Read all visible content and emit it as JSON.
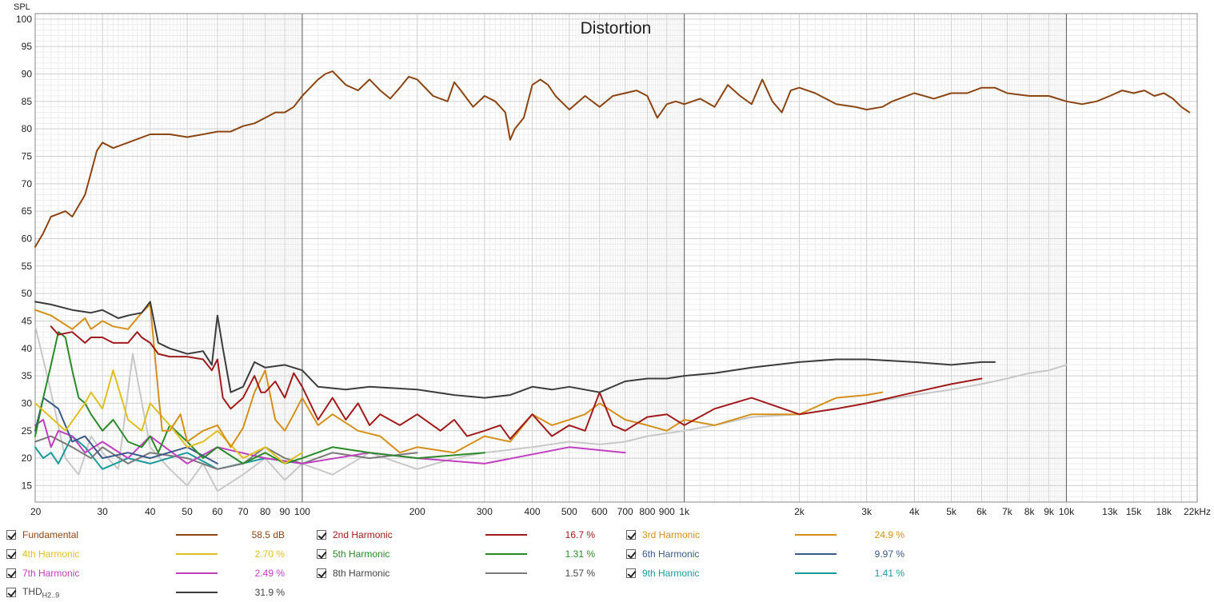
{
  "chart_data": {
    "type": "line",
    "title": "Distortion",
    "ylabel": "SPL",
    "xscale": "log",
    "xlim": [
      20,
      22000
    ],
    "ylim": [
      12,
      101
    ],
    "grid": true,
    "x_ticks": [
      {
        "v": 20,
        "label": "20"
      },
      {
        "v": 30,
        "label": "30"
      },
      {
        "v": 40,
        "label": "40"
      },
      {
        "v": 50,
        "label": "50"
      },
      {
        "v": 60,
        "label": "60"
      },
      {
        "v": 70,
        "label": "70"
      },
      {
        "v": 80,
        "label": "80"
      },
      {
        "v": 90,
        "label": "90"
      },
      {
        "v": 100,
        "label": "100"
      },
      {
        "v": 200,
        "label": "200"
      },
      {
        "v": 300,
        "label": "300"
      },
      {
        "v": 400,
        "label": "400"
      },
      {
        "v": 500,
        "label": "500"
      },
      {
        "v": 600,
        "label": "600"
      },
      {
        "v": 700,
        "label": "700"
      },
      {
        "v": 800,
        "label": "800"
      },
      {
        "v": 900,
        "label": "900"
      },
      {
        "v": 1000,
        "label": "1k"
      },
      {
        "v": 2000,
        "label": "2k"
      },
      {
        "v": 3000,
        "label": "3k"
      },
      {
        "v": 4000,
        "label": "4k"
      },
      {
        "v": 5000,
        "label": "5k"
      },
      {
        "v": 6000,
        "label": "6k"
      },
      {
        "v": 7000,
        "label": "7k"
      },
      {
        "v": 8000,
        "label": "8k"
      },
      {
        "v": 9000,
        "label": "9k"
      },
      {
        "v": 10000,
        "label": "10k"
      },
      {
        "v": 13000,
        "label": "13k"
      },
      {
        "v": 15000,
        "label": "15k"
      },
      {
        "v": 18000,
        "label": "18k"
      },
      {
        "v": 22000,
        "label": "22kHz"
      }
    ],
    "y_ticks": [
      15,
      20,
      25,
      30,
      35,
      40,
      45,
      50,
      55,
      60,
      65,
      70,
      75,
      80,
      85,
      90,
      95,
      100
    ],
    "series": [
      {
        "name": "THD H2..9",
        "color": "#3c3c3c",
        "x": [
          20,
          22,
          25,
          28,
          30,
          33,
          35,
          38,
          40,
          42,
          45,
          50,
          55,
          58,
          60,
          62,
          65,
          70,
          75,
          80,
          90,
          100,
          110,
          130,
          150,
          200,
          250,
          300,
          350,
          400,
          450,
          500,
          600,
          700,
          800,
          900,
          1000,
          1200,
          1500,
          2000,
          2500,
          3000,
          4000,
          5000,
          6000,
          6500
        ],
        "y": [
          48.5,
          48,
          47,
          46.5,
          47,
          45.5,
          46,
          46.5,
          48.5,
          41,
          40,
          39,
          39.5,
          37,
          46,
          40,
          32,
          33,
          37.5,
          36.5,
          37,
          36,
          33,
          32.5,
          33,
          32.5,
          31.5,
          31,
          31.5,
          33,
          32.5,
          33,
          32,
          34,
          34.5,
          34.5,
          35,
          35.5,
          36.5,
          37.5,
          38,
          38,
          37.5,
          37,
          37.5,
          37.5
        ]
      },
      {
        "name": "Fundamental",
        "color": "#8b4513",
        "x": [
          20,
          21,
          22,
          23,
          24,
          25,
          26,
          27,
          28,
          29,
          30,
          32,
          35,
          40,
          45,
          50,
          55,
          60,
          65,
          70,
          75,
          80,
          85,
          90,
          95,
          100,
          110,
          115,
          120,
          130,
          140,
          150,
          160,
          170,
          180,
          190,
          200,
          220,
          240,
          250,
          260,
          280,
          300,
          320,
          340,
          350,
          360,
          380,
          400,
          420,
          440,
          460,
          500,
          550,
          600,
          650,
          700,
          750,
          800,
          850,
          900,
          950,
          1000,
          1100,
          1200,
          1300,
          1400,
          1500,
          1600,
          1700,
          1800,
          1900,
          2000,
          2200,
          2500,
          2800,
          3000,
          3300,
          3500,
          4000,
          4500,
          5000,
          5500,
          6000,
          6500,
          7000,
          8000,
          9000,
          10000,
          11000,
          12000,
          13000,
          14000,
          15000,
          16000,
          17000,
          18000,
          19000,
          20000,
          21000
        ],
        "y": [
          58.5,
          61,
          64,
          64.5,
          65,
          64,
          66,
          68,
          72,
          76,
          77.5,
          76.5,
          77.5,
          79,
          79,
          78.5,
          79,
          79.5,
          79.5,
          80.5,
          81,
          82,
          83,
          83,
          84,
          86,
          89,
          90,
          90.5,
          88,
          87,
          89,
          87,
          85.5,
          87.5,
          89.5,
          89,
          86,
          85,
          88.5,
          87,
          84,
          86,
          85,
          83,
          78,
          80,
          82,
          88,
          89,
          88,
          86,
          83.5,
          86,
          84,
          86,
          86.5,
          87,
          86,
          82,
          84.5,
          85,
          84.5,
          85.5,
          84,
          88,
          86,
          84.5,
          89,
          85,
          83,
          87,
          87.5,
          86.5,
          84.5,
          84,
          83.5,
          84,
          85,
          86.5,
          85.5,
          86.5,
          86.5,
          87.5,
          87.5,
          86.5,
          86,
          86,
          85,
          84.5,
          85,
          86,
          87,
          86.5,
          87,
          86,
          86.5,
          85.5,
          84,
          83
        ]
      },
      {
        "name": "2nd Harmonic",
        "color": "#a01c1c",
        "x": [
          22,
          23,
          25,
          27,
          28,
          30,
          32,
          35,
          37,
          38,
          40,
          42,
          45,
          50,
          55,
          58,
          60,
          62,
          65,
          70,
          75,
          78,
          80,
          85,
          90,
          95,
          100,
          110,
          120,
          130,
          140,
          150,
          160,
          180,
          200,
          230,
          250,
          270,
          300,
          330,
          350,
          400,
          450,
          500,
          550,
          600,
          650,
          700,
          800,
          900,
          1000,
          1200,
          1500,
          2000,
          2500,
          3000,
          4000,
          5000,
          6000
        ],
        "y": [
          44,
          42.5,
          43,
          41,
          42,
          42,
          41,
          41,
          43,
          42,
          41,
          39,
          38.5,
          38.5,
          38,
          36,
          38,
          31,
          29,
          31,
          35,
          32,
          32,
          34,
          31,
          35.5,
          33,
          27,
          31,
          27,
          30,
          26,
          28,
          26,
          28,
          25,
          27,
          24,
          25,
          26,
          23.5,
          28,
          24,
          26,
          25,
          32,
          26,
          25,
          27.5,
          28,
          26,
          29,
          31,
          28,
          29,
          30,
          32,
          33.5,
          34.5
        ]
      },
      {
        "name": "3rd Harmonic",
        "color": "#d4901a",
        "x": [
          20,
          22,
          25,
          27,
          28,
          30,
          32,
          35,
          38,
          40,
          42,
          43,
          45,
          48,
          50,
          55,
          60,
          65,
          70,
          75,
          80,
          85,
          90,
          95,
          100,
          110,
          120,
          140,
          160,
          180,
          200,
          250,
          300,
          350,
          400,
          450,
          500,
          550,
          600,
          700,
          800,
          900,
          1000,
          1200,
          1500,
          2000,
          2500,
          3000,
          3300
        ],
        "y": [
          47,
          46,
          43.5,
          45.5,
          43.5,
          45,
          44,
          43.5,
          46.5,
          48,
          32,
          25,
          25,
          28,
          23,
          25,
          26,
          22,
          25.5,
          32,
          36,
          27,
          25,
          28,
          31,
          26,
          28,
          25,
          24,
          21,
          22,
          21,
          24,
          23,
          28,
          26,
          27,
          28,
          30,
          27,
          26,
          25,
          27,
          26,
          28,
          28,
          31,
          31.5,
          32
        ]
      },
      {
        "name": "4th Harmonic",
        "color": "#e0c020",
        "x": [
          20,
          24,
          27,
          28,
          30,
          32,
          35,
          38,
          40,
          45,
          50,
          55,
          60,
          70,
          80,
          90,
          100
        ],
        "y": [
          30,
          25,
          30,
          32,
          29,
          36,
          27,
          25,
          30,
          26,
          22,
          23,
          25,
          20,
          22,
          19,
          21
        ]
      },
      {
        "name": "5th Harmonic",
        "color": "#2a8a2a",
        "x": [
          20,
          21,
          22,
          23,
          24,
          25,
          26,
          27,
          28,
          30,
          32,
          35,
          38,
          40,
          42,
          45,
          50,
          55,
          60,
          70,
          80,
          90,
          100,
          120,
          150,
          200,
          300
        ],
        "y": [
          24,
          31,
          37,
          43,
          42,
          36,
          31,
          30,
          28,
          25,
          27,
          23,
          22,
          24,
          21,
          26,
          23,
          20,
          22,
          19,
          21,
          19,
          20,
          22,
          21,
          20,
          21
        ]
      },
      {
        "name": "6th Harmonic",
        "color": "#3a5a8a",
        "x": [
          20,
          21,
          22,
          23,
          25,
          27,
          30,
          35,
          40,
          50,
          60
        ],
        "y": [
          25,
          31,
          30,
          29,
          23,
          24,
          20,
          21,
          20,
          22,
          19
        ]
      },
      {
        "name": "7th Harmonic",
        "color": "#c040c0",
        "x": [
          20,
          21,
          22,
          23,
          25,
          27,
          30,
          35,
          40,
          50,
          60,
          80,
          100,
          150,
          200,
          300,
          500,
          700
        ],
        "y": [
          26,
          27,
          22,
          25,
          24,
          21,
          23,
          20,
          24,
          19,
          22,
          20,
          19,
          21,
          20,
          19,
          22,
          21
        ]
      },
      {
        "name": "8th Harmonic",
        "color": "#7a7a7a",
        "x": [
          20,
          22,
          25,
          28,
          30,
          35,
          40,
          50,
          60,
          70,
          80,
          90,
          100,
          120,
          150,
          200
        ],
        "y": [
          23,
          24,
          22,
          20,
          22,
          19,
          21,
          20,
          18,
          19,
          22,
          20,
          19,
          21,
          20,
          21
        ]
      },
      {
        "name": "9th Harmonic",
        "color": "#1a9a9a",
        "x": [
          20,
          21,
          22,
          23,
          25,
          27,
          30,
          35,
          40,
          50,
          60,
          80,
          100
        ],
        "y": [
          22,
          20,
          21,
          19,
          24,
          22,
          18,
          20,
          19,
          21,
          18,
          20,
          19
        ]
      },
      {
        "name": "noise floor",
        "color": "#c8c8c8",
        "x": [
          20,
          21,
          22,
          24,
          26,
          28,
          30,
          33,
          36,
          40,
          45,
          50,
          55,
          60,
          70,
          80,
          90,
          100,
          120,
          150,
          200,
          250,
          300,
          400,
          500,
          600,
          700,
          800,
          1000,
          1200,
          1500,
          2000,
          2500,
          3000,
          4000,
          5000,
          6000,
          7000,
          8000,
          9000,
          10000
        ],
        "y": [
          44,
          38,
          32,
          20,
          17,
          24,
          21,
          18,
          39,
          22,
          18,
          15,
          19,
          14,
          17,
          20,
          16,
          19,
          17,
          21,
          18,
          20,
          21,
          22,
          23,
          22.5,
          23,
          24,
          25,
          26,
          27.5,
          28,
          29,
          30,
          31.5,
          32.5,
          33.5,
          34.5,
          35.5,
          36,
          37
        ]
      }
    ],
    "legend": [
      {
        "label": "Fundamental",
        "value": "58.5 dB",
        "color": "#8b4513"
      },
      {
        "label": "2nd Harmonic",
        "value": "16.7 %",
        "color": "#a01c1c"
      },
      {
        "label": "3rd Harmonic",
        "value": "24.9 %",
        "color": "#d4901a"
      },
      {
        "label": "4th Harmonic",
        "value": "2.70 %",
        "color": "#e0c020"
      },
      {
        "label": "5th Harmonic",
        "value": "1.31 %",
        "color": "#2a8a2a"
      },
      {
        "label": "6th Harmonic",
        "value": "9.97 %",
        "color": "#3a5a8a"
      },
      {
        "label": "7th Harmonic",
        "value": "2.49 %",
        "color": "#c040c0"
      },
      {
        "label": "8th Harmonic",
        "value": "1.57 %",
        "color": "#7a7a7a"
      },
      {
        "label": "9th Harmonic",
        "value": "1.41 %",
        "color": "#1a9a9a"
      },
      {
        "label": "THD",
        "sub": "H2..9",
        "value": "31.9 %",
        "color": "#3c3c3c"
      }
    ]
  }
}
